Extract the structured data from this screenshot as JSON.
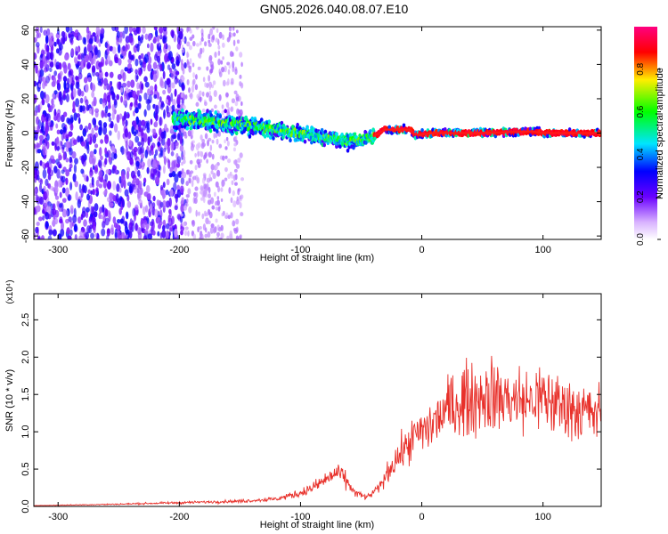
{
  "title": "GN05.2026.040.08.07.E10",
  "chart_data": [
    {
      "type": "heatmap",
      "xlabel": "Height of straight line (km)",
      "ylabel": "Frequency (Hz)",
      "xlim": [
        -320,
        148
      ],
      "ylim": [
        -62,
        62
      ],
      "xticks": [
        -300,
        -200,
        -100,
        0,
        100
      ],
      "yticks": [
        60,
        40,
        20,
        0,
        -20,
        -40,
        -60
      ],
      "colorbar": {
        "label": "Normalized spectral amplitude",
        "range": [
          0,
          1
        ],
        "ticks": [
          0.0,
          0.2,
          0.4,
          0.6,
          0.8
        ]
      },
      "ridge": {
        "description_points_x": [
          -200,
          -150,
          -100,
          -75,
          -55,
          -40,
          -30,
          -10,
          -5,
          10,
          50,
          90,
          100,
          130,
          148
        ],
        "description_points_y": [
          8,
          5,
          0,
          -3,
          -5,
          -2,
          2,
          2,
          -1,
          0,
          0,
          1,
          0,
          0,
          0
        ]
      }
    },
    {
      "type": "line",
      "xlabel": "Height of straight line (km)",
      "ylabel": "SNR (10 * v/v)",
      "scale_label": "(x10⁴)",
      "xlim": [
        -320,
        148
      ],
      "ylim": [
        0,
        2.85
      ],
      "xticks": [
        -300,
        -200,
        -100,
        0,
        100
      ],
      "yticks": [
        0.0,
        0.5,
        1.0,
        1.5,
        2.0,
        2.5
      ],
      "color": "#e8302a",
      "envelope": {
        "x": [
          -320,
          -250,
          -200,
          -150,
          -120,
          -100,
          -90,
          -80,
          -70,
          -65,
          -55,
          -45,
          -35,
          -25,
          -15,
          -5,
          5,
          15,
          25,
          40,
          55,
          70,
          85,
          100,
          115,
          130,
          148
        ],
        "y": [
          0.01,
          0.03,
          0.05,
          0.07,
          0.1,
          0.18,
          0.25,
          0.35,
          0.45,
          0.4,
          0.18,
          0.12,
          0.25,
          0.55,
          0.75,
          0.95,
          1.05,
          1.2,
          1.35,
          1.45,
          1.5,
          1.45,
          1.4,
          1.45,
          1.35,
          1.3,
          1.2
        ]
      }
    }
  ]
}
